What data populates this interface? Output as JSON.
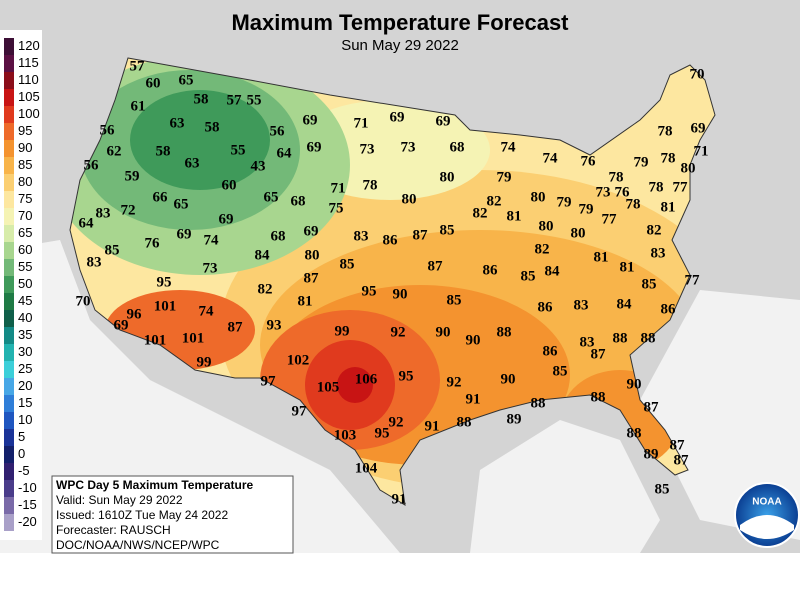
{
  "title": "Maximum Temperature Forecast",
  "subtitle": "Sun May 29 2022",
  "legend": [
    {
      "value": 120,
      "color": "#3d0f36"
    },
    {
      "value": 115,
      "color": "#5b1043"
    },
    {
      "value": 110,
      "color": "#8b0d1a"
    },
    {
      "value": 105,
      "color": "#c81414"
    },
    {
      "value": 100,
      "color": "#e03a1e"
    },
    {
      "value": 95,
      "color": "#ee6a2a"
    },
    {
      "value": 90,
      "color": "#f4932f"
    },
    {
      "value": 85,
      "color": "#f8b44a"
    },
    {
      "value": 80,
      "color": "#fbcf72"
    },
    {
      "value": 75,
      "color": "#fde7a0"
    },
    {
      "value": 70,
      "color": "#f5f3b4"
    },
    {
      "value": 65,
      "color": "#d7ecaa"
    },
    {
      "value": 60,
      "color": "#a8d68f"
    },
    {
      "value": 55,
      "color": "#73b978"
    },
    {
      "value": 50,
      "color": "#3f9a5a"
    },
    {
      "value": 45,
      "color": "#1f7b45"
    },
    {
      "value": 40,
      "color": "#0f5f4a"
    },
    {
      "value": 35,
      "color": "#138a86"
    },
    {
      "value": 30,
      "color": "#22b3b0"
    },
    {
      "value": 25,
      "color": "#3ccfd9"
    },
    {
      "value": 20,
      "color": "#47a7e6"
    },
    {
      "value": 15,
      "color": "#2f7ed8"
    },
    {
      "value": 10,
      "color": "#1f56c0"
    },
    {
      "value": 5,
      "color": "#1a3398"
    },
    {
      "value": 0,
      "color": "#13206b"
    },
    {
      "value": -5,
      "color": "#312070"
    },
    {
      "value": -10,
      "color": "#4a3c8a"
    },
    {
      "value": -15,
      "color": "#7a6aa8"
    },
    {
      "value": -20,
      "color": "#a9a0c8"
    }
  ],
  "temperatures": [
    70,
    57,
    60,
    65,
    58,
    57,
    55,
    61,
    63,
    58,
    69,
    71,
    69,
    69,
    78,
    69,
    56,
    56,
    62,
    58,
    63,
    55,
    64,
    69,
    73,
    73,
    68,
    74,
    74,
    79,
    78,
    80,
    71,
    56,
    59,
    43,
    80,
    79,
    76,
    78,
    78,
    77,
    60,
    71,
    78,
    66,
    65,
    65,
    68,
    80,
    82,
    80,
    79,
    73,
    76,
    79,
    78,
    81,
    83,
    72,
    64,
    69,
    75,
    82,
    81,
    80,
    77,
    80,
    82,
    69,
    68,
    69,
    74,
    76,
    83,
    86,
    87,
    85,
    82,
    83,
    85,
    83,
    80,
    84,
    73,
    85,
    87,
    86,
    85,
    84,
    81,
    81,
    77,
    85,
    95,
    87,
    82,
    95,
    90,
    85,
    70,
    101,
    96,
    74,
    81,
    86,
    83,
    84,
    86,
    69,
    87,
    93,
    99,
    92,
    90,
    90,
    88,
    101,
    101,
    83,
    88,
    88,
    102,
    99,
    86,
    87,
    85,
    95,
    92,
    90,
    97,
    105,
    106,
    90,
    91,
    88,
    88,
    97,
    87,
    89,
    92,
    91,
    88,
    103,
    95,
    88,
    87,
    89,
    87,
    104,
    85,
    91
  ],
  "info_box": {
    "title": "WPC Day 5 Maximum Temperature",
    "lines": [
      "Valid: Sun May 29 2022",
      "Issued: 1610Z Tue May 24 2022",
      "Forecaster: RAUSCH",
      "DOC/NOAA/NWS/NCEP/WPC"
    ]
  },
  "logo": "NOAA"
}
